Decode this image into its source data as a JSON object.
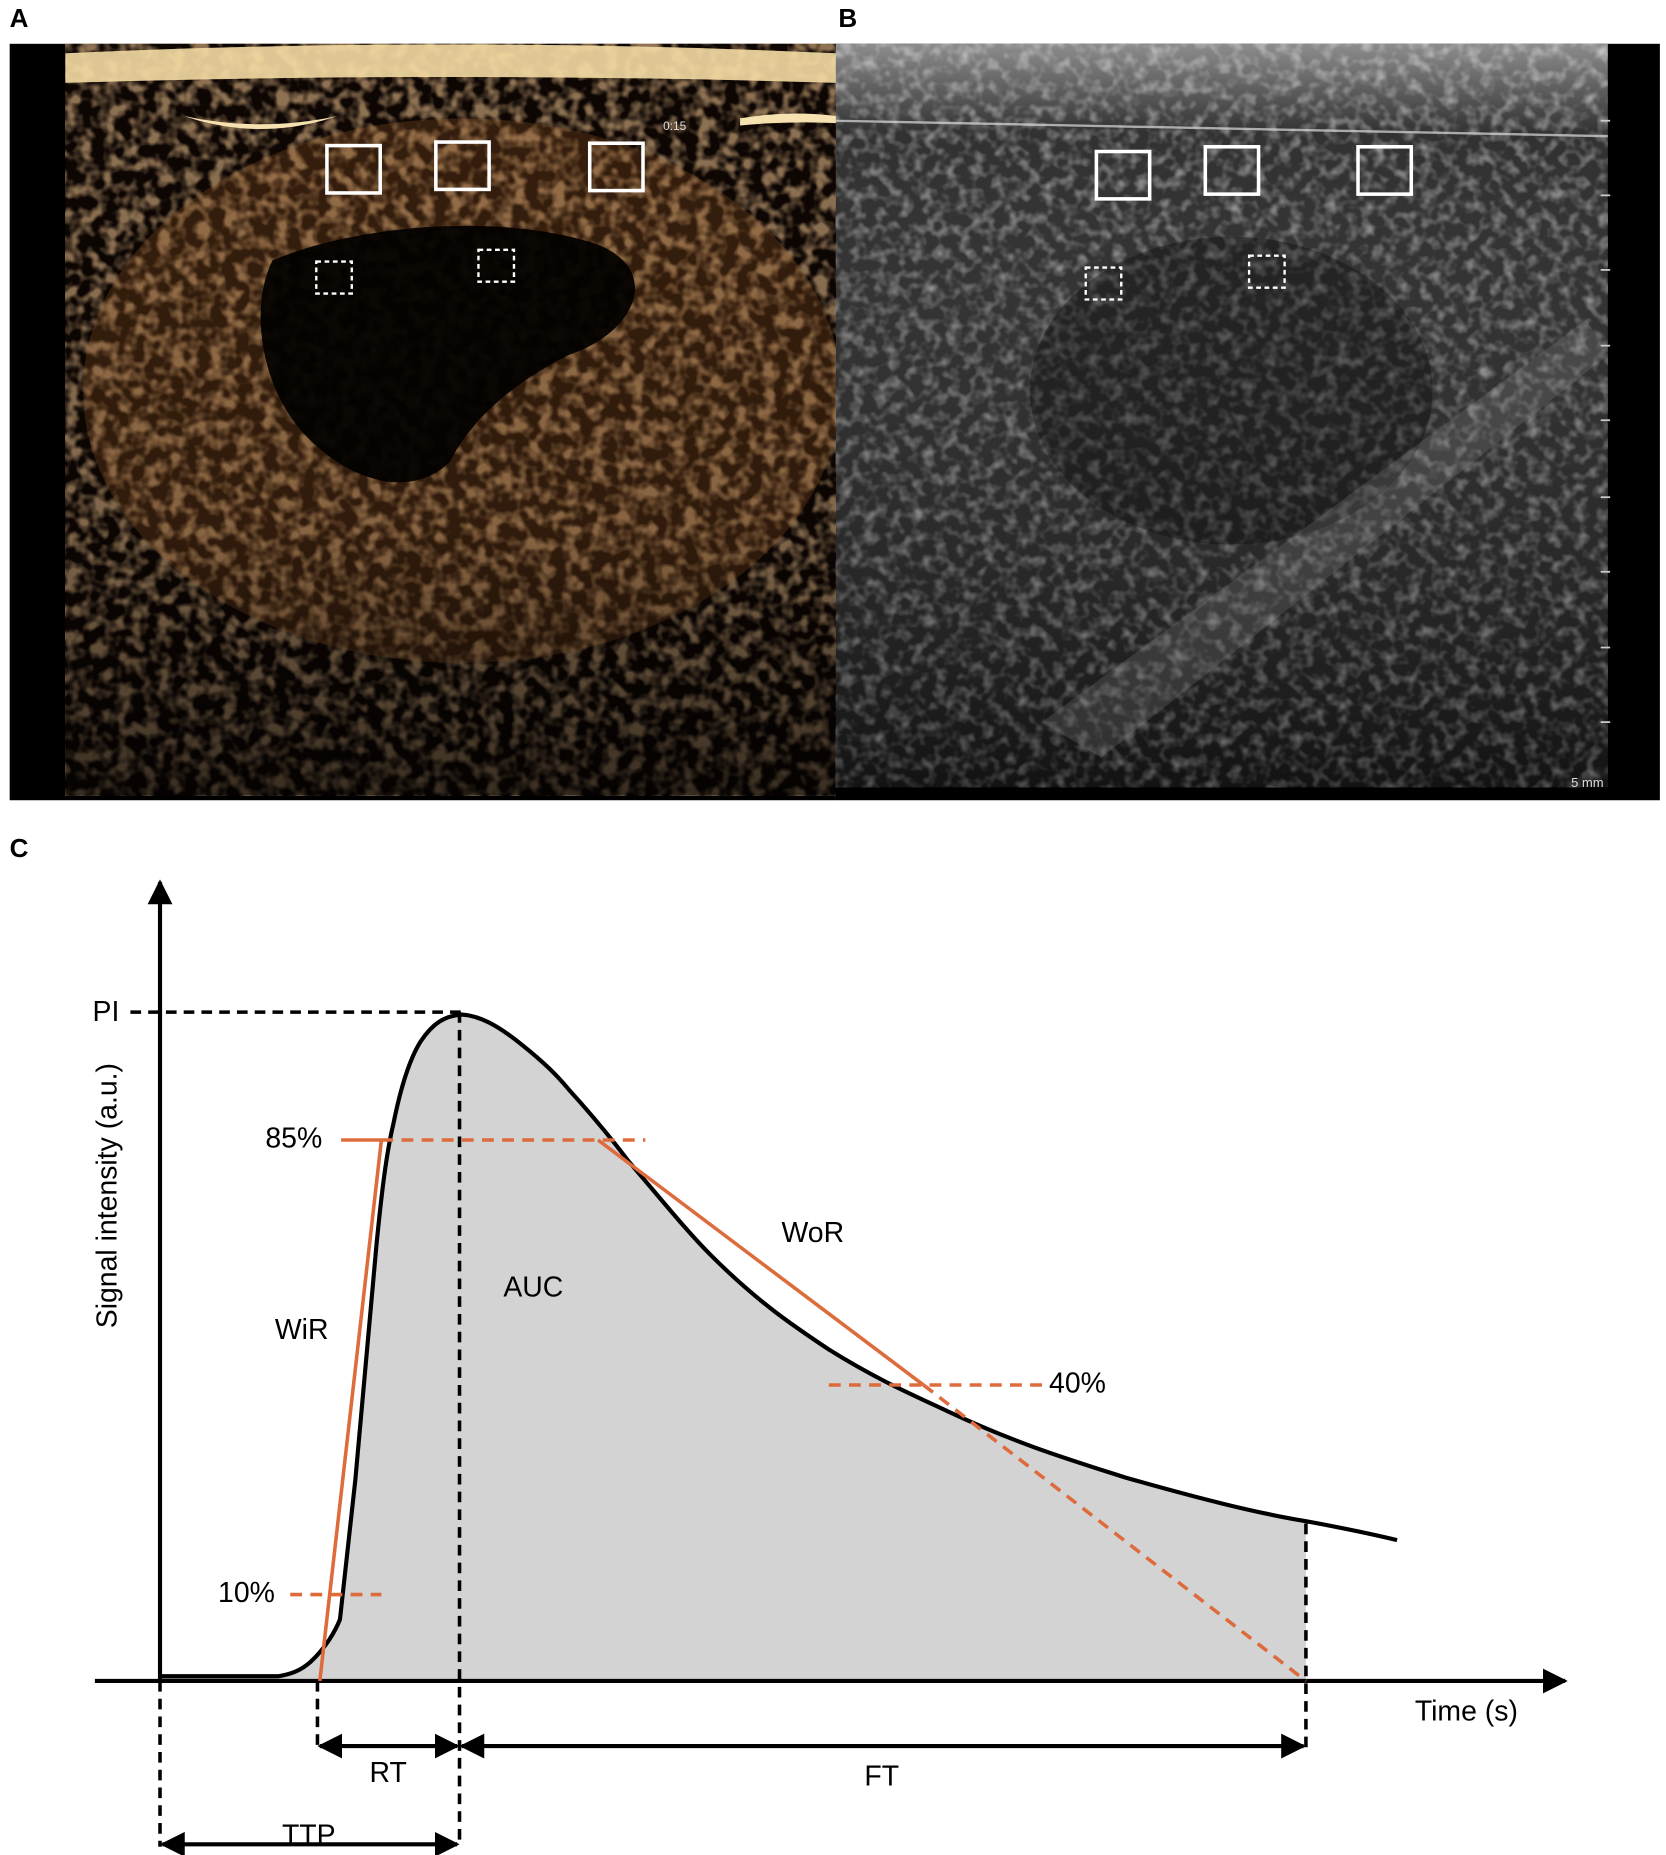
{
  "panels": {
    "a": {
      "label": "A",
      "timestamp": "0:15"
    },
    "b": {
      "label": "B",
      "scale_bar": "5 mm"
    },
    "c": {
      "label": "C",
      "y_axis_title": "Signal intensity (a.u.)",
      "x_axis_title": "Time (s)",
      "labels": {
        "pi": "PI",
        "p85": "85%",
        "p10": "10%",
        "p40": "40%",
        "wir": "WiR",
        "wor": "WoR",
        "auc": "AUC",
        "rt": "RT",
        "ft": "FT",
        "ttp": "TTP"
      }
    }
  }
}
